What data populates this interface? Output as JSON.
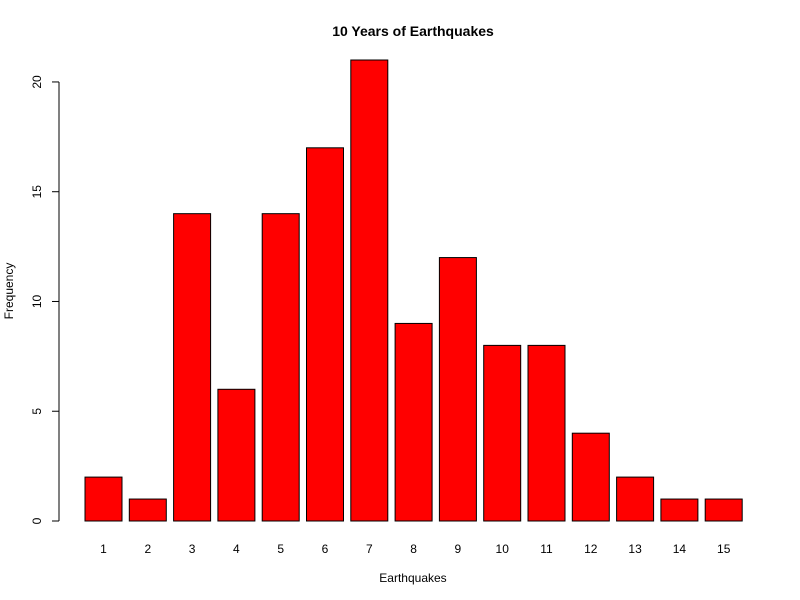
{
  "chart_data": {
    "type": "bar",
    "title": "10 Years of Earthquakes",
    "xlabel": "Earthquakes",
    "ylabel": "Frequency",
    "categories": [
      "1",
      "2",
      "3",
      "4",
      "5",
      "6",
      "7",
      "8",
      "9",
      "10",
      "11",
      "12",
      "13",
      "14",
      "15"
    ],
    "values": [
      2,
      1,
      14,
      6,
      14,
      17,
      21,
      9,
      12,
      8,
      8,
      4,
      2,
      1,
      1
    ],
    "yticks": [
      "0",
      "5",
      "10",
      "15",
      "20"
    ],
    "ylim": [
      0,
      21
    ],
    "grid": false,
    "legend": "none",
    "bar_color": "#ff0000"
  }
}
